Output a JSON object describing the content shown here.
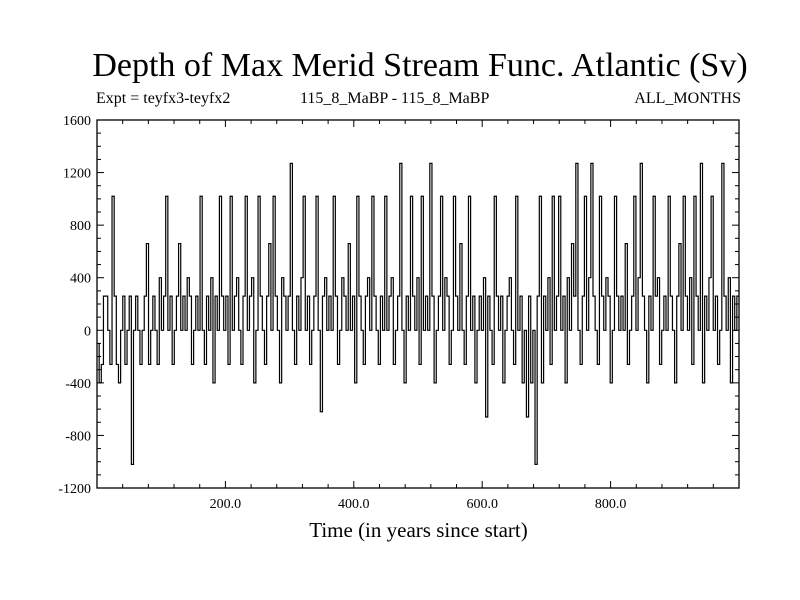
{
  "chart_data": {
    "type": "line",
    "title": "Depth of Max Merid Stream Func. Atlantic (Sv)",
    "subtitle_left": "Expt = teyfx3-teyfx2",
    "subtitle_center": "115_8_MaBP - 115_8_MaBP",
    "subtitle_right": "ALL_MONTHS",
    "xlabel": "Time (in years since start)",
    "ylabel": "",
    "xlim": [
      0,
      1000
    ],
    "ylim": [
      -1200,
      1600
    ],
    "x_ticks": [
      200,
      400,
      600,
      800
    ],
    "x_tick_labels": [
      "200.0",
      "400.0",
      "600.0",
      "800.0"
    ],
    "y_ticks": [
      -1200,
      -800,
      -400,
      0,
      400,
      800,
      1200,
      1600
    ],
    "y_tick_labels": [
      "-1200",
      "-800",
      "-400",
      "0",
      "400",
      "800",
      "1200",
      "1600"
    ],
    "grid": false,
    "legend": "none",
    "series": [
      {
        "color": "#000000",
        "levels": [
          -1020,
          -660,
          -620,
          -400,
          -260,
          0,
          260,
          400,
          660,
          1020,
          1270
        ],
        "values": [
          -100,
          -400,
          -260,
          260,
          260,
          0,
          -260,
          1020,
          260,
          -260,
          -400,
          0,
          260,
          -260,
          0,
          260,
          -1020,
          0,
          260,
          0,
          -260,
          0,
          260,
          660,
          -260,
          0,
          260,
          0,
          -260,
          400,
          0,
          260,
          1020,
          0,
          260,
          -260,
          0,
          260,
          660,
          0,
          260,
          0,
          400,
          260,
          -260,
          0,
          260,
          0,
          1020,
          0,
          -260,
          260,
          0,
          400,
          -400,
          260,
          0,
          1020,
          260,
          0,
          260,
          -260,
          1020,
          0,
          260,
          400,
          0,
          -260,
          260,
          1020,
          0,
          260,
          400,
          -400,
          0,
          1020,
          260,
          0,
          -260,
          260,
          660,
          0,
          1020,
          260,
          0,
          -400,
          400,
          260,
          0,
          260,
          1270,
          0,
          -260,
          260,
          0,
          400,
          1020,
          0,
          260,
          -260,
          0,
          260,
          1020,
          0,
          -620,
          260,
          400,
          0,
          260,
          0,
          1020,
          260,
          -260,
          0,
          400,
          260,
          0,
          660,
          0,
          260,
          -400,
          1020,
          260,
          0,
          -260,
          260,
          400,
          0,
          1020,
          260,
          0,
          -260,
          260,
          0,
          1020,
          0,
          260,
          400,
          -260,
          0,
          260,
          1270,
          0,
          -400,
          260,
          0,
          1020,
          260,
          0,
          400,
          -260,
          1020,
          0,
          260,
          0,
          1270,
          260,
          -400,
          0,
          260,
          1020,
          0,
          400,
          260,
          -260,
          0,
          1020,
          260,
          0,
          660,
          0,
          -260,
          260,
          1020,
          0,
          260,
          -400,
          0,
          260,
          0,
          400,
          -660,
          260,
          0,
          -260,
          1020,
          260,
          0,
          260,
          -400,
          0,
          260,
          400,
          0,
          -260,
          1020,
          0,
          260,
          -400,
          0,
          -660,
          260,
          -400,
          0,
          -1020,
          260,
          1020,
          -400,
          260,
          0,
          400,
          -260,
          1020,
          0,
          260,
          1020,
          0,
          260,
          -400,
          400,
          0,
          660,
          260,
          1270,
          0,
          -260,
          260,
          1020,
          0,
          400,
          1270,
          260,
          0,
          -260,
          1020,
          260,
          0,
          400,
          260,
          -400,
          0,
          1020,
          260,
          0,
          260,
          0,
          660,
          -260,
          0,
          260,
          1020,
          0,
          400,
          1270,
          260,
          0,
          -400,
          260,
          0,
          1020,
          260,
          400,
          -260,
          0,
          260,
          0,
          1020,
          260,
          0,
          -400,
          260,
          660,
          0,
          1020,
          260,
          0,
          400,
          -260,
          1020,
          260,
          0,
          1270,
          -400,
          260,
          0,
          400,
          1020,
          0,
          260,
          -260,
          0,
          1270,
          260,
          0,
          400,
          -400,
          260,
          0,
          260
        ]
      }
    ]
  }
}
